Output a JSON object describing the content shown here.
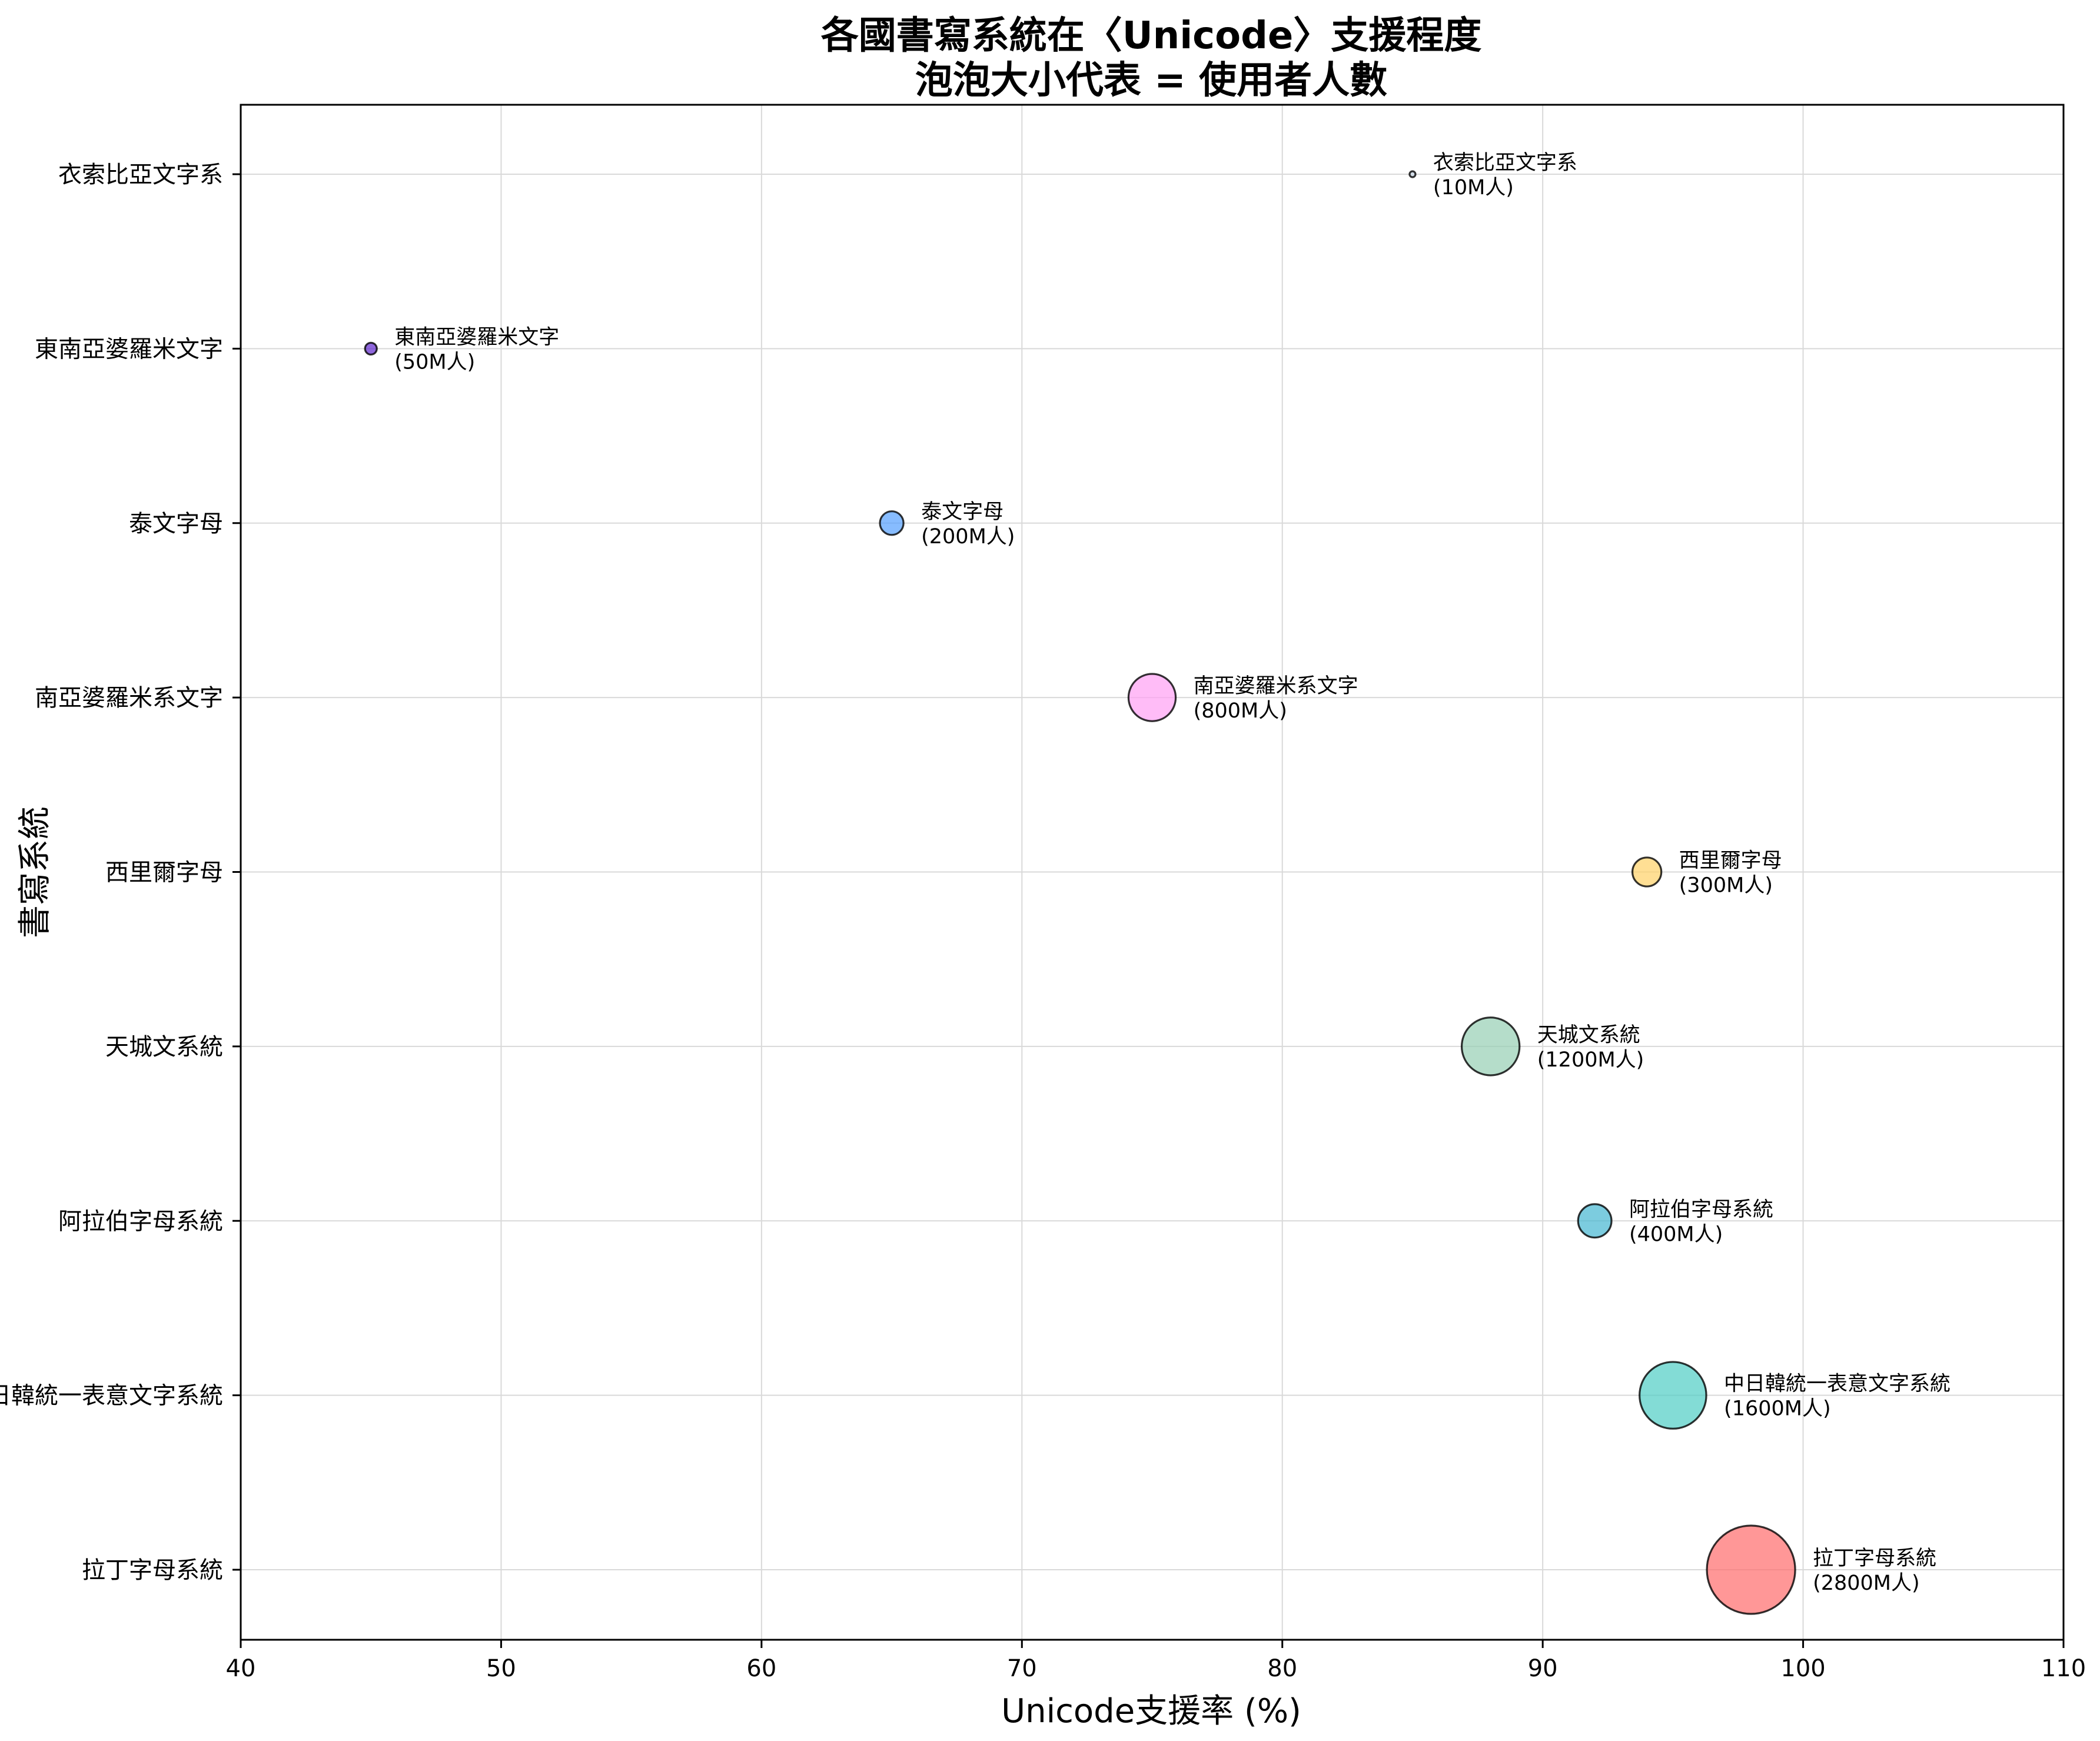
{
  "chart_data": {
    "type": "scatter",
    "title": "各國書寫系統在〈Unicode〉支援程度",
    "subtitle": "泡泡大小代表 = 使用者人數",
    "xlabel": "Unicode支援率 (%)",
    "ylabel": "書寫系統",
    "xlim": [
      40,
      110
    ],
    "x_ticks": [
      40,
      50,
      60,
      70,
      80,
      90,
      100,
      110
    ],
    "grid": true,
    "categories": [
      "拉丁字母系統",
      "中日韓統一表意文字系統",
      "阿拉伯字母系統",
      "天城文系統",
      "西里爾字母",
      "南亞婆羅米系文字",
      "泰文字母",
      "東南亞婆羅米文字",
      "衣索比亞文字系"
    ],
    "points": [
      {
        "category": "拉丁字母系統",
        "x": 98,
        "users_million": 2800,
        "label": "拉丁字母系統",
        "size_label": "(2800M人)",
        "color": "#ff6b6b"
      },
      {
        "category": "中日韓統一表意文字系統",
        "x": 95,
        "users_million": 1600,
        "label": "中日韓統一表意文字系統",
        "size_label": "(1600M人)",
        "color": "#4ecdc4"
      },
      {
        "category": "阿拉伯字母系統",
        "x": 92,
        "users_million": 400,
        "label": "阿拉伯字母系統",
        "size_label": "(400M人)",
        "color": "#45b7d1"
      },
      {
        "category": "天城文系統",
        "x": 88,
        "users_million": 1200,
        "label": "天城文系統",
        "size_label": "(1200M人)",
        "color": "#96ceb4"
      },
      {
        "category": "西里爾字母",
        "x": 94,
        "users_million": 300,
        "label": "西里爾字母",
        "size_label": "(300M人)",
        "color": "#ffd166"
      },
      {
        "category": "南亞婆羅米系文字",
        "x": 75,
        "users_million": 800,
        "label": "南亞婆羅米系文字",
        "size_label": "(800M人)",
        "color": "#ff9ff3"
      },
      {
        "category": "泰文字母",
        "x": 65,
        "users_million": 200,
        "label": "泰文字母",
        "size_label": "(200M人)",
        "color": "#54a0ff"
      },
      {
        "category": "東南亞婆羅米文字",
        "x": 45,
        "users_million": 50,
        "label": "東南亞婆羅米文字",
        "size_label": "(50M人)",
        "color": "#5f27cd"
      },
      {
        "category": "衣索比亞文字系",
        "x": 85,
        "users_million": 10,
        "label": "衣索比亞文字系",
        "size_label": "(10M人)",
        "color": "#c8d6e5"
      }
    ]
  }
}
